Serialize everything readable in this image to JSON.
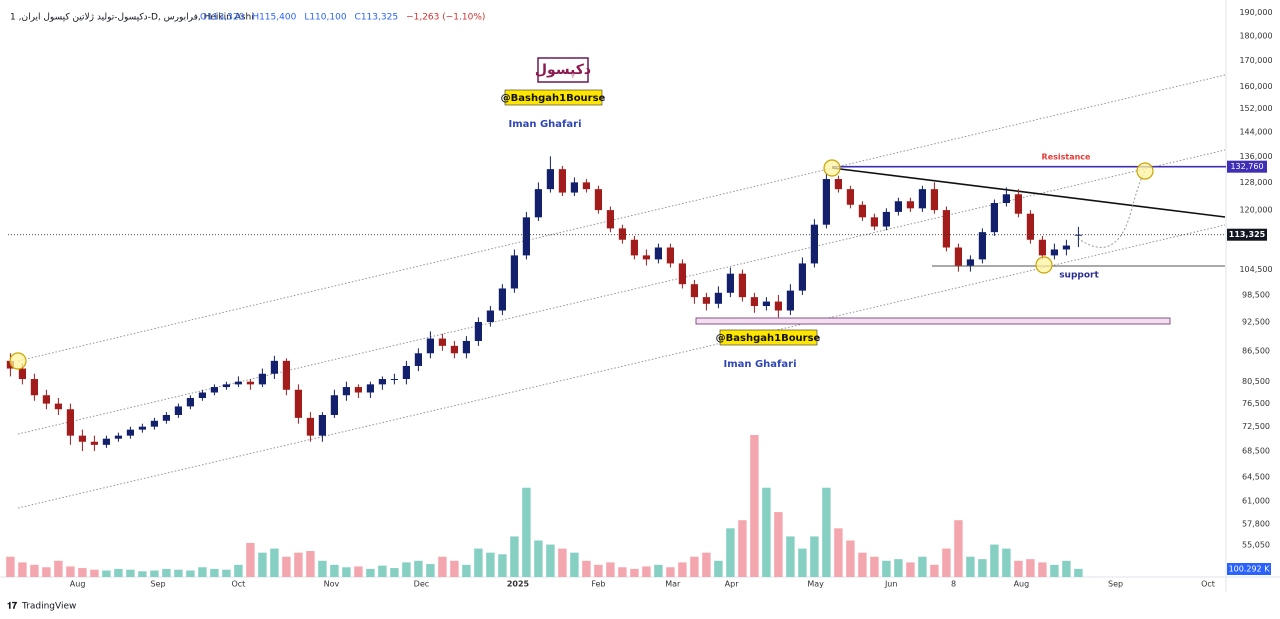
{
  "chart_data": {
    "type": "candlestick",
    "title": "1 ,دکپسول-تولید ژلاتین کپسول ایران-D, فرابورس, Heikin Ashi",
    "ohlc_labels": [
      "O113,320",
      "H115,400",
      "L110,100",
      "C113,325",
      "−1,263 (−1.10%)"
    ],
    "log_scale": true,
    "grid": false,
    "ylim": [
      51100,
      193400
    ],
    "yticks": [
      {
        "value": 190000,
        "label": "190,000"
      },
      {
        "value": 180000,
        "label": "180,000"
      },
      {
        "value": 170000,
        "label": "170,000"
      },
      {
        "value": 160000,
        "label": "160,000"
      },
      {
        "value": 152000,
        "label": "152,000"
      },
      {
        "value": 144000,
        "label": "144,000"
      },
      {
        "value": 136000,
        "label": "136,000"
      },
      {
        "value": 128000,
        "label": "128,000"
      },
      {
        "value": 120000,
        "label": "120,000"
      },
      {
        "value": 104500,
        "label": "104,500"
      },
      {
        "value": 98500,
        "label": "98,500"
      },
      {
        "value": 92500,
        "label": "92,500"
      },
      {
        "value": 86500,
        "label": "86,500"
      },
      {
        "value": 80500,
        "label": "80,500"
      },
      {
        "value": 76500,
        "label": "76,500"
      },
      {
        "value": 72500,
        "label": "72,500"
      },
      {
        "value": 68500,
        "label": "68,500"
      },
      {
        "value": 64500,
        "label": "64,500"
      },
      {
        "value": 61000,
        "label": "61,000"
      },
      {
        "value": 57800,
        "label": "57,800"
      },
      {
        "value": 55050,
        "label": "55,050"
      }
    ],
    "xlim": [
      -0.2,
      101.3
    ],
    "xticks": [
      {
        "value": 5.6,
        "label": "Aug"
      },
      {
        "value": 12.3,
        "label": "Sep"
      },
      {
        "value": 19,
        "label": "Oct"
      },
      {
        "value": 26.75,
        "label": "Nov"
      },
      {
        "value": 34.25,
        "label": "Dec"
      },
      {
        "value": 42.3,
        "label": "2025"
      },
      {
        "value": 49,
        "label": "Feb"
      },
      {
        "value": 55.2,
        "label": "Mar"
      },
      {
        "value": 60.1,
        "label": "Apr"
      },
      {
        "value": 67.1,
        "label": "May"
      },
      {
        "value": 73.4,
        "label": "Jun"
      },
      {
        "value": 78.6,
        "label": "8"
      },
      {
        "value": 84.25,
        "label": "Aug"
      },
      {
        "value": 92.1,
        "label": "Sep"
      },
      {
        "value": 99.8,
        "label": "Oct"
      }
    ],
    "up_color": "#13206b",
    "down_color": "#a31c1c",
    "volume_up_color": "#86cfc3",
    "volume_down_color": "#f3a6ad",
    "open": [
      84500,
      83000,
      81000,
      78000,
      76500,
      75500,
      71000,
      70000,
      69500,
      70500,
      71000,
      72000,
      72500,
      73500,
      74500,
      76000,
      77500,
      78500,
      79500,
      80000,
      80500,
      80000,
      82000,
      84500,
      79000,
      74000,
      71000,
      74500,
      78000,
      79500,
      78500,
      80000,
      81000,
      81000,
      83500,
      86000,
      89000,
      87500,
      86000,
      88500,
      92500,
      95000,
      100000,
      108000,
      118000,
      126000,
      132000,
      125000,
      128000,
      126000,
      120000,
      115000,
      112000,
      108000,
      107000,
      110000,
      106000,
      101000,
      98000,
      96500,
      99000,
      103500,
      98000,
      96000,
      97000,
      95000,
      99500,
      106000,
      116000,
      129000,
      126000,
      121500,
      118000,
      115500,
      119500,
      122500,
      120500,
      126000,
      120000,
      110000,
      105500,
      107000,
      114000,
      122000,
      124500,
      119000,
      112000,
      108000,
      109500,
      113320
    ],
    "high": [
      86000,
      84000,
      82000,
      79000,
      77500,
      76500,
      72000,
      71000,
      71000,
      71500,
      72500,
      73000,
      74000,
      75000,
      76500,
      78000,
      79000,
      80000,
      80500,
      81500,
      81000,
      83000,
      85500,
      85000,
      80000,
      75000,
      75000,
      79000,
      80500,
      80000,
      80500,
      81500,
      82000,
      84500,
      87000,
      90500,
      90000,
      88500,
      89500,
      93500,
      96000,
      101000,
      109500,
      119500,
      128000,
      136000,
      133000,
      129500,
      129000,
      127000,
      121000,
      116000,
      113000,
      109500,
      111000,
      111000,
      107000,
      102000,
      99000,
      100500,
      105000,
      104500,
      99000,
      98000,
      98500,
      101000,
      107500,
      117500,
      131000,
      130000,
      127000,
      122500,
      119000,
      120500,
      123500,
      123500,
      127000,
      128000,
      121000,
      111000,
      108000,
      115000,
      123000,
      126500,
      126000,
      120000,
      113000,
      111000,
      112000,
      115400
    ],
    "low": [
      81500,
      80000,
      77000,
      75500,
      74500,
      69500,
      68500,
      68500,
      69000,
      70000,
      70500,
      71500,
      72000,
      73000,
      74000,
      75500,
      77000,
      78000,
      79000,
      79500,
      79000,
      79500,
      81000,
      78000,
      73000,
      70000,
      70000,
      74000,
      77000,
      77500,
      77500,
      79000,
      80000,
      80000,
      82500,
      85000,
      86500,
      85000,
      85000,
      87500,
      91500,
      94000,
      99000,
      107000,
      117000,
      125000,
      124000,
      124000,
      125000,
      119000,
      114000,
      111000,
      107000,
      105500,
      106000,
      105000,
      100000,
      96500,
      95000,
      95500,
      98000,
      97000,
      94500,
      95000,
      93500,
      94000,
      98500,
      105000,
      115000,
      125000,
      120500,
      117000,
      114500,
      114500,
      118500,
      119500,
      119500,
      119000,
      109000,
      104000,
      104000,
      106000,
      113000,
      121000,
      118000,
      111000,
      107000,
      107000,
      108000,
      110100
    ],
    "close": [
      83000,
      81000,
      78000,
      76500,
      75500,
      71000,
      70000,
      69500,
      70500,
      71000,
      72000,
      72500,
      73500,
      74500,
      76000,
      77500,
      78500,
      79500,
      80000,
      80500,
      80000,
      82000,
      84500,
      79000,
      74000,
      71000,
      74500,
      78000,
      79500,
      78500,
      80000,
      81000,
      81000,
      83500,
      86000,
      89000,
      87500,
      86000,
      88500,
      92500,
      95000,
      100000,
      108000,
      118000,
      126000,
      132000,
      125000,
      128000,
      126000,
      120000,
      115000,
      112000,
      108000,
      107000,
      110000,
      106000,
      101000,
      98000,
      96500,
      99000,
      103500,
      98000,
      96000,
      97000,
      95000,
      99500,
      106000,
      116000,
      129000,
      126000,
      121500,
      118000,
      115500,
      119500,
      122500,
      120500,
      126000,
      120000,
      110000,
      105500,
      107000,
      114000,
      122000,
      124500,
      119000,
      112000,
      108000,
      109500,
      110500,
      113325
    ],
    "volume": [
      250000,
      180000,
      150000,
      120000,
      200000,
      130000,
      110000,
      90000,
      80000,
      100000,
      90000,
      70000,
      80000,
      100000,
      90000,
      80000,
      120000,
      100000,
      90000,
      150000,
      420000,
      300000,
      350000,
      250000,
      300000,
      320000,
      200000,
      150000,
      120000,
      130000,
      100000,
      140000,
      110000,
      180000,
      200000,
      160000,
      250000,
      200000,
      150000,
      350000,
      300000,
      280000,
      500000,
      1100000,
      450000,
      400000,
      350000,
      300000,
      200000,
      150000,
      180000,
      120000,
      100000,
      130000,
      150000,
      120000,
      180000,
      250000,
      300000,
      200000,
      600000,
      700000,
      1750000,
      1100000,
      800000,
      500000,
      350000,
      500000,
      1100000,
      600000,
      450000,
      300000,
      250000,
      200000,
      220000,
      180000,
      250000,
      150000,
      350000,
      700000,
      250000,
      220000,
      400000,
      350000,
      200000,
      220000,
      180000,
      150000,
      200000,
      100292
    ],
    "volume_label": "100.292 K",
    "last_price_label": "113,325",
    "resistance": {
      "name": "Resistance",
      "value": 132760,
      "label": "132,760"
    },
    "support_label": "support",
    "annotations": {
      "ticker": "دکپسول",
      "channel": "@Bashgah1Bourse",
      "author": "Iman Ghafari"
    },
    "footer": "TradingView"
  }
}
